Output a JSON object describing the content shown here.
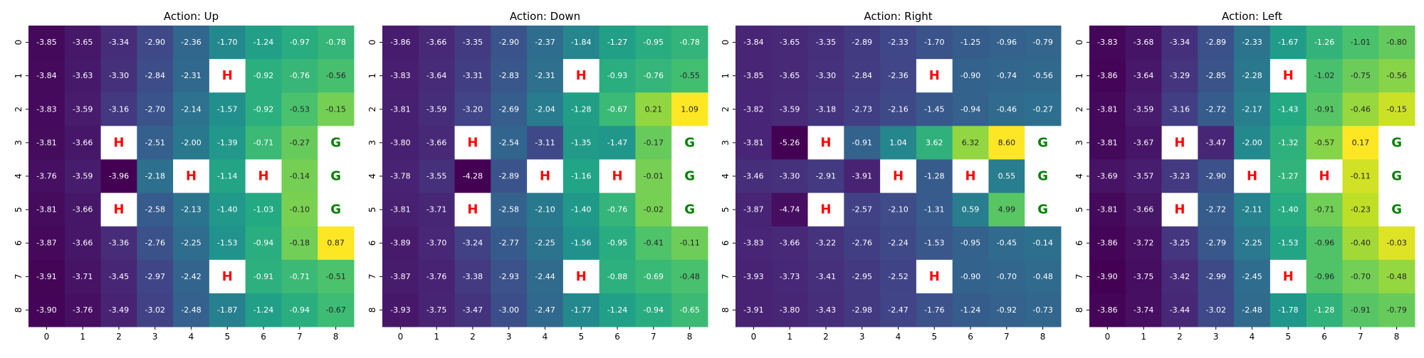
{
  "figure": {
    "background": "#ffffff"
  },
  "chart_data": [
    {
      "type": "heatmap",
      "title": "Action: Up",
      "x_ticks": [
        "0",
        "1",
        "2",
        "3",
        "4",
        "5",
        "6",
        "7",
        "8"
      ],
      "y_ticks": [
        "0",
        "1",
        "2",
        "3",
        "4",
        "5",
        "6",
        "7",
        "8"
      ],
      "colormap": "viridis",
      "values": [
        [
          "-3.85",
          "-3.65",
          "-3.34",
          "-2.90",
          "-2.36",
          "-1.70",
          "-1.24",
          "-0.97",
          "-0.78"
        ],
        [
          "-3.84",
          "-3.63",
          "-3.30",
          "-2.84",
          "-2.31",
          "H",
          "-0.92",
          "-0.76",
          "-0.56"
        ],
        [
          "-3.83",
          "-3.59",
          "-3.16",
          "-2.70",
          "-2.14",
          "-1.57",
          "-0.92",
          "-0.53",
          "-0.15"
        ],
        [
          "-3.81",
          "-3.66",
          "H",
          "-2.51",
          "-2.00",
          "-1.39",
          "-0.71",
          "-0.27",
          "G"
        ],
        [
          "-3.76",
          "-3.59",
          "-3.96",
          "-2.18",
          "H",
          "-1.14",
          "H",
          "-0.14",
          "G"
        ],
        [
          "-3.81",
          "-3.66",
          "H",
          "-2.58",
          "-2.13",
          "-1.40",
          "-1.03",
          "-0.10",
          "G"
        ],
        [
          "-3.87",
          "-3.66",
          "-3.36",
          "-2.76",
          "-2.25",
          "-1.53",
          "-0.94",
          "-0.18",
          "0.87"
        ],
        [
          "-3.91",
          "-3.71",
          "-3.45",
          "-2.97",
          "-2.42",
          "H",
          "-0.91",
          "-0.71",
          "-0.51"
        ],
        [
          "-3.90",
          "-3.76",
          "-3.49",
          "-3.02",
          "-2.48",
          "-1.87",
          "-1.24",
          "-0.94",
          "-0.67"
        ]
      ]
    },
    {
      "type": "heatmap",
      "title": "Action: Down",
      "x_ticks": [
        "0",
        "1",
        "2",
        "3",
        "4",
        "5",
        "6",
        "7",
        "8"
      ],
      "y_ticks": [
        "0",
        "1",
        "2",
        "3",
        "4",
        "5",
        "6",
        "7",
        "8"
      ],
      "colormap": "viridis",
      "values": [
        [
          "-3.86",
          "-3.66",
          "-3.35",
          "-2.90",
          "-2.37",
          "-1.84",
          "-1.27",
          "-0.95",
          "-0.78"
        ],
        [
          "-3.83",
          "-3.64",
          "-3.31",
          "-2.83",
          "-2.31",
          "H",
          "-0.93",
          "-0.76",
          "-0.55"
        ],
        [
          "-3.81",
          "-3.59",
          "-3.20",
          "-2.69",
          "-2.04",
          "-1.28",
          "-0.67",
          "0.21",
          "1.09"
        ],
        [
          "-3.80",
          "-3.66",
          "H",
          "-2.54",
          "-3.11",
          "-1.35",
          "-1.47",
          "-0.17",
          "G"
        ],
        [
          "-3.78",
          "-3.55",
          "-4.28",
          "-2.89",
          "H",
          "-1.16",
          "H",
          "-0.01",
          "G"
        ],
        [
          "-3.81",
          "-3.71",
          "H",
          "-2.58",
          "-2.10",
          "-1.40",
          "-0.76",
          "-0.02",
          "G"
        ],
        [
          "-3.89",
          "-3.70",
          "-3.24",
          "-2.77",
          "-2.25",
          "-1.56",
          "-0.95",
          "-0.41",
          "-0.11"
        ],
        [
          "-3.87",
          "-3.76",
          "-3.38",
          "-2.93",
          "-2.44",
          "H",
          "-0.88",
          "-0.69",
          "-0.48"
        ],
        [
          "-3.93",
          "-3.75",
          "-3.47",
          "-3.00",
          "-2.47",
          "-1.77",
          "-1.24",
          "-0.94",
          "-0.65"
        ]
      ]
    },
    {
      "type": "heatmap",
      "title": "Action: Right",
      "x_ticks": [
        "0",
        "1",
        "2",
        "3",
        "4",
        "5",
        "6",
        "7",
        "8"
      ],
      "y_ticks": [
        "0",
        "1",
        "2",
        "3",
        "4",
        "5",
        "6",
        "7",
        "8"
      ],
      "colormap": "viridis",
      "values": [
        [
          "-3.84",
          "-3.65",
          "-3.35",
          "-2.89",
          "-2.33",
          "-1.70",
          "-1.25",
          "-0.96",
          "-0.79"
        ],
        [
          "-3.85",
          "-3.65",
          "-3.30",
          "-2.84",
          "-2.36",
          "H",
          "-0.90",
          "-0.74",
          "-0.56"
        ],
        [
          "-3.82",
          "-3.59",
          "-3.18",
          "-2.73",
          "-2.16",
          "-1.45",
          "-0.94",
          "-0.46",
          "-0.27"
        ],
        [
          "-3.81",
          "-5.26",
          "H",
          "-0.91",
          "1.04",
          "3.62",
          "6.32",
          "8.60",
          "G"
        ],
        [
          "-3.46",
          "-3.30",
          "-2.91",
          "-3.91",
          "H",
          "-1.28",
          "H",
          "0.55",
          "G"
        ],
        [
          "-3.87",
          "-4.74",
          "H",
          "-2.57",
          "-2.10",
          "-1.31",
          "0.59",
          "4.99",
          "G"
        ],
        [
          "-3.83",
          "-3.66",
          "-3.22",
          "-2.76",
          "-2.24",
          "-1.53",
          "-0.95",
          "-0.45",
          "-0.14"
        ],
        [
          "-3.93",
          "-3.73",
          "-3.41",
          "-2.95",
          "-2.52",
          "H",
          "-0.90",
          "-0.70",
          "-0.48"
        ],
        [
          "-3.91",
          "-3.80",
          "-3.43",
          "-2.98",
          "-2.47",
          "-1.76",
          "-1.24",
          "-0.92",
          "-0.73"
        ]
      ]
    },
    {
      "type": "heatmap",
      "title": "Action: Left",
      "x_ticks": [
        "0",
        "1",
        "2",
        "3",
        "4",
        "5",
        "6",
        "7",
        "8"
      ],
      "y_ticks": [
        "0",
        "1",
        "2",
        "3",
        "4",
        "5",
        "6",
        "7",
        "8"
      ],
      "colormap": "viridis",
      "values": [
        [
          "-3.83",
          "-3.68",
          "-3.34",
          "-2.89",
          "-2.33",
          "-1.67",
          "-1.26",
          "-1.01",
          "-0.80"
        ],
        [
          "-3.86",
          "-3.64",
          "-3.29",
          "-2.85",
          "-2.28",
          "H",
          "-1.02",
          "-0.75",
          "-0.56"
        ],
        [
          "-3.81",
          "-3.59",
          "-3.16",
          "-2.72",
          "-2.17",
          "-1.43",
          "-0.91",
          "-0.46",
          "-0.15"
        ],
        [
          "-3.81",
          "-3.67",
          "H",
          "-3.47",
          "-2.00",
          "-1.32",
          "-0.57",
          "0.17",
          "G"
        ],
        [
          "-3.69",
          "-3.57",
          "-3.23",
          "-2.90",
          "H",
          "-1.27",
          "H",
          "-0.11",
          "G"
        ],
        [
          "-3.81",
          "-3.66",
          "H",
          "-2.72",
          "-2.11",
          "-1.40",
          "-0.71",
          "-0.23",
          "G"
        ],
        [
          "-3.86",
          "-3.72",
          "-3.25",
          "-2.79",
          "-2.25",
          "-1.53",
          "-0.96",
          "-0.40",
          "-0.03"
        ],
        [
          "-3.90",
          "-3.75",
          "-3.42",
          "-2.99",
          "-2.45",
          "H",
          "-0.96",
          "-0.70",
          "-0.48"
        ],
        [
          "-3.86",
          "-3.74",
          "-3.44",
          "-3.02",
          "-2.48",
          "-1.78",
          "-1.28",
          "-0.91",
          "-0.79"
        ]
      ]
    }
  ],
  "style": {
    "hole_label_color": "#ff0000",
    "goal_label_color": "#008000",
    "special_cell_fill": "#ffffff",
    "light_text_color": "#ffffff",
    "dark_text_color": "#262626"
  }
}
